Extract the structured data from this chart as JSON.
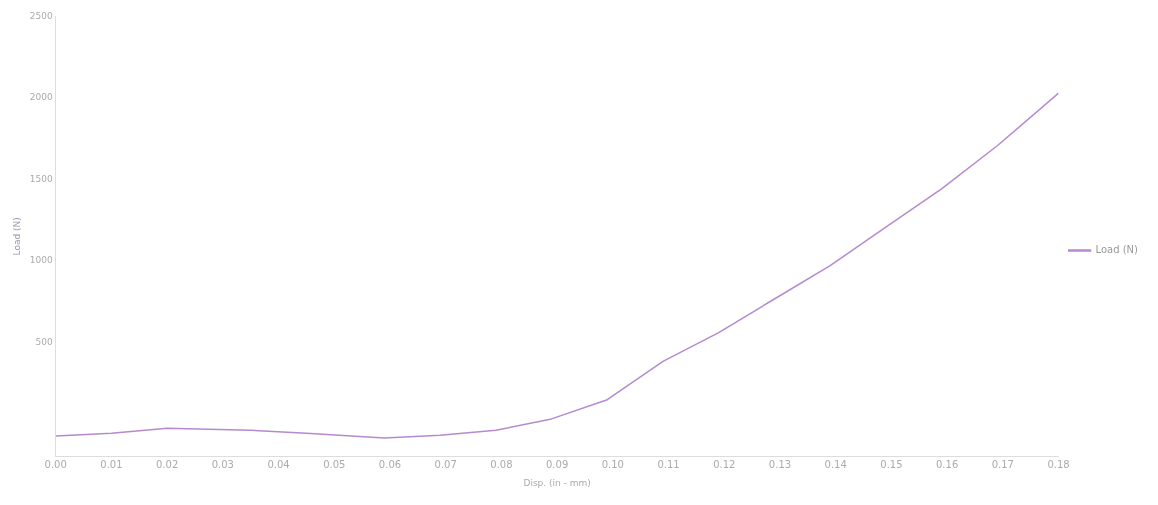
{
  "chart_data": {
    "type": "line",
    "xlabel": "Disp. (in - mm)",
    "ylabel": "Load (N)",
    "x": [
      0,
      0.01,
      0.02,
      0.035,
      0.045,
      0.059,
      0.069,
      0.079,
      0.089,
      0.099,
      0.109,
      0.119,
      0.129,
      0.139,
      0.149,
      0.159,
      0.169,
      0.18
    ],
    "series": [
      {
        "name": "Load (N)",
        "color": "#b58ad0",
        "values": [
          -76,
          -59,
          -29,
          -41,
          -59,
          -88,
          -71,
          -41,
          29,
          147,
          382,
          559,
          765,
          970,
          1206,
          1441,
          1706,
          2029
        ]
      }
    ],
    "xlim": [
      0,
      0.18
    ],
    "xticks": [
      {
        "value": 0,
        "label": "0.00"
      },
      0.01,
      0.02,
      0.03,
      0.04,
      0.05,
      0.06,
      0.07,
      0.08,
      0.09,
      {
        "value": 0.1,
        "label": "0.10"
      },
      0.11,
      0.12,
      0.13,
      0.14,
      0.15,
      0.16,
      0.17,
      0.18
    ],
    "ylim": [
      -200,
      2500
    ],
    "yticks": [
      500,
      1000,
      1500,
      2000,
      2500
    ],
    "legend": "right",
    "grid": false,
    "marker": "none",
    "line_style": "solid"
  }
}
